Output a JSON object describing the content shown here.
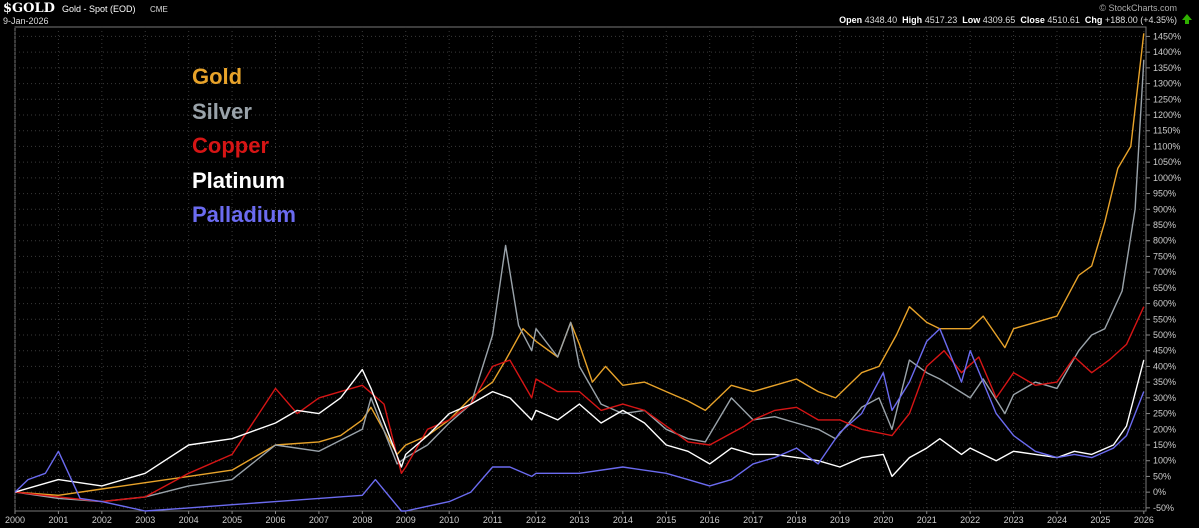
{
  "header": {
    "ticker": "$GOLD",
    "subtitle": "Gold - Spot (EOD)",
    "exchange": "CME",
    "date": "9-Jan-2026",
    "brand": "© StockCharts.com",
    "open_label": "Open",
    "open": "4348.40",
    "high_label": "High",
    "high": "4517.23",
    "low_label": "Low",
    "low": "4309.65",
    "close_label": "Close",
    "close": "4510.61",
    "chg_label": "Chg",
    "chg": "+188.00 (+4.35%)",
    "arrow_icon": "up-arrow-icon",
    "arrow_color": "#2fb000"
  },
  "chart_data": {
    "type": "line",
    "title": "",
    "xlabel": "",
    "ylabel": "",
    "xlim": [
      2000,
      2026.05
    ],
    "ylim": [
      -60,
      1480
    ],
    "grid": true,
    "legend_position": "top-left",
    "x_ticks": [
      "2000",
      "2001",
      "2002",
      "2003",
      "2004",
      "2005",
      "2006",
      "2007",
      "2008",
      "2009",
      "2010",
      "2011",
      "2012",
      "2013",
      "2014",
      "2015",
      "2016",
      "2017",
      "2018",
      "2019",
      "2020",
      "2021",
      "2022",
      "2023",
      "2024",
      "2025",
      "2026"
    ],
    "y_ticks": [
      "-50%",
      "0%",
      "50%",
      "100%",
      "150%",
      "200%",
      "250%",
      "300%",
      "350%",
      "400%",
      "450%",
      "500%",
      "550%",
      "600%",
      "650%",
      "700%",
      "750%",
      "800%",
      "850%",
      "900%",
      "950%",
      "1000%",
      "1050%",
      "1100%",
      "1150%",
      "1200%",
      "1250%",
      "1300%",
      "1350%",
      "1400%",
      "1450%"
    ],
    "series": [
      {
        "name": "Gold",
        "color": "#e8a32a",
        "points": [
          [
            2000,
            0
          ],
          [
            2001,
            -10
          ],
          [
            2002,
            10
          ],
          [
            2003,
            30
          ],
          [
            2004,
            50
          ],
          [
            2005,
            70
          ],
          [
            2006,
            150
          ],
          [
            2007,
            160
          ],
          [
            2007.5,
            180
          ],
          [
            2008,
            230
          ],
          [
            2008.2,
            270
          ],
          [
            2008.8,
            120
          ],
          [
            2009,
            150
          ],
          [
            2009.5,
            180
          ],
          [
            2010,
            230
          ],
          [
            2010.5,
            300
          ],
          [
            2011,
            350
          ],
          [
            2011.3,
            420
          ],
          [
            2011.7,
            520
          ],
          [
            2012,
            480
          ],
          [
            2012.5,
            430
          ],
          [
            2012.8,
            540
          ],
          [
            2013,
            470
          ],
          [
            2013.3,
            350
          ],
          [
            2013.6,
            400
          ],
          [
            2014,
            340
          ],
          [
            2014.5,
            350
          ],
          [
            2015,
            320
          ],
          [
            2015.5,
            290
          ],
          [
            2015.9,
            260
          ],
          [
            2016.5,
            340
          ],
          [
            2017,
            320
          ],
          [
            2017.5,
            340
          ],
          [
            2018,
            360
          ],
          [
            2018.5,
            320
          ],
          [
            2018.9,
            300
          ],
          [
            2019.5,
            380
          ],
          [
            2019.9,
            400
          ],
          [
            2020.3,
            500
          ],
          [
            2020.6,
            590
          ],
          [
            2021,
            540
          ],
          [
            2021.3,
            520
          ],
          [
            2022,
            520
          ],
          [
            2022.3,
            560
          ],
          [
            2022.8,
            460
          ],
          [
            2023,
            520
          ],
          [
            2023.5,
            540
          ],
          [
            2024,
            560
          ],
          [
            2024.5,
            690
          ],
          [
            2024.8,
            720
          ],
          [
            2025.1,
            860
          ],
          [
            2025.4,
            1030
          ],
          [
            2025.7,
            1100
          ],
          [
            2026,
            1460
          ]
        ]
      },
      {
        "name": "Silver",
        "color": "#9aa3aa",
        "points": [
          [
            2000,
            0
          ],
          [
            2001,
            -20
          ],
          [
            2002,
            -30
          ],
          [
            2003,
            -15
          ],
          [
            2004,
            20
          ],
          [
            2005,
            40
          ],
          [
            2006,
            150
          ],
          [
            2007,
            130
          ],
          [
            2008,
            200
          ],
          [
            2008.2,
            300
          ],
          [
            2008.8,
            90
          ],
          [
            2009,
            110
          ],
          [
            2009.5,
            150
          ],
          [
            2010,
            220
          ],
          [
            2010.5,
            280
          ],
          [
            2011,
            500
          ],
          [
            2011.3,
            785
          ],
          [
            2011.6,
            530
          ],
          [
            2011.9,
            450
          ],
          [
            2012,
            520
          ],
          [
            2012.5,
            430
          ],
          [
            2012.8,
            540
          ],
          [
            2013,
            400
          ],
          [
            2013.5,
            280
          ],
          [
            2014,
            250
          ],
          [
            2014.5,
            260
          ],
          [
            2015,
            200
          ],
          [
            2015.5,
            170
          ],
          [
            2015.9,
            160
          ],
          [
            2016.5,
            300
          ],
          [
            2017,
            230
          ],
          [
            2017.5,
            240
          ],
          [
            2018,
            220
          ],
          [
            2018.5,
            200
          ],
          [
            2018.9,
            170
          ],
          [
            2019.5,
            270
          ],
          [
            2019.9,
            300
          ],
          [
            2020.2,
            200
          ],
          [
            2020.6,
            420
          ],
          [
            2021,
            380
          ],
          [
            2021.3,
            360
          ],
          [
            2022,
            300
          ],
          [
            2022.3,
            360
          ],
          [
            2022.8,
            250
          ],
          [
            2023,
            310
          ],
          [
            2023.5,
            350
          ],
          [
            2024,
            330
          ],
          [
            2024.5,
            450
          ],
          [
            2024.8,
            500
          ],
          [
            2025.1,
            520
          ],
          [
            2025.5,
            640
          ],
          [
            2025.8,
            900
          ],
          [
            2026,
            1375
          ]
        ]
      },
      {
        "name": "Copper",
        "color": "#d61515",
        "points": [
          [
            2000,
            0
          ],
          [
            2001,
            -15
          ],
          [
            2002,
            -30
          ],
          [
            2003,
            -15
          ],
          [
            2004,
            60
          ],
          [
            2005,
            120
          ],
          [
            2006,
            330
          ],
          [
            2006.5,
            250
          ],
          [
            2007,
            300
          ],
          [
            2007.5,
            320
          ],
          [
            2008,
            340
          ],
          [
            2008.5,
            280
          ],
          [
            2008.9,
            60
          ],
          [
            2009,
            80
          ],
          [
            2009.5,
            200
          ],
          [
            2010,
            230
          ],
          [
            2010.5,
            280
          ],
          [
            2011,
            400
          ],
          [
            2011.4,
            420
          ],
          [
            2011.9,
            300
          ],
          [
            2012,
            360
          ],
          [
            2012.5,
            320
          ],
          [
            2013,
            320
          ],
          [
            2013.5,
            260
          ],
          [
            2014,
            280
          ],
          [
            2014.5,
            260
          ],
          [
            2015,
            210
          ],
          [
            2015.5,
            160
          ],
          [
            2016,
            150
          ],
          [
            2016.8,
            210
          ],
          [
            2017,
            230
          ],
          [
            2017.5,
            260
          ],
          [
            2018,
            270
          ],
          [
            2018.5,
            230
          ],
          [
            2019,
            230
          ],
          [
            2019.5,
            200
          ],
          [
            2020.2,
            180
          ],
          [
            2020.6,
            250
          ],
          [
            2021,
            400
          ],
          [
            2021.4,
            450
          ],
          [
            2021.8,
            380
          ],
          [
            2022.2,
            430
          ],
          [
            2022.6,
            300
          ],
          [
            2023,
            380
          ],
          [
            2023.5,
            340
          ],
          [
            2024,
            350
          ],
          [
            2024.4,
            430
          ],
          [
            2024.8,
            380
          ],
          [
            2025.2,
            420
          ],
          [
            2025.6,
            470
          ],
          [
            2026,
            590
          ]
        ]
      },
      {
        "name": "Platinum",
        "color": "#ffffff",
        "points": [
          [
            2000,
            0
          ],
          [
            2001,
            40
          ],
          [
            2002,
            20
          ],
          [
            2003,
            60
          ],
          [
            2004,
            150
          ],
          [
            2005,
            170
          ],
          [
            2006,
            220
          ],
          [
            2006.5,
            260
          ],
          [
            2007,
            250
          ],
          [
            2007.5,
            300
          ],
          [
            2008,
            390
          ],
          [
            2008.2,
            330
          ],
          [
            2008.9,
            80
          ],
          [
            2009,
            120
          ],
          [
            2009.5,
            180
          ],
          [
            2010,
            250
          ],
          [
            2010.5,
            280
          ],
          [
            2011,
            320
          ],
          [
            2011.4,
            300
          ],
          [
            2011.9,
            230
          ],
          [
            2012,
            260
          ],
          [
            2012.5,
            230
          ],
          [
            2013,
            280
          ],
          [
            2013.5,
            220
          ],
          [
            2014,
            260
          ],
          [
            2014.5,
            220
          ],
          [
            2015,
            150
          ],
          [
            2015.5,
            130
          ],
          [
            2016,
            90
          ],
          [
            2016.5,
            140
          ],
          [
            2017,
            120
          ],
          [
            2017.5,
            120
          ],
          [
            2018,
            110
          ],
          [
            2018.5,
            100
          ],
          [
            2019,
            80
          ],
          [
            2019.5,
            110
          ],
          [
            2020,
            120
          ],
          [
            2020.2,
            50
          ],
          [
            2020.6,
            110
          ],
          [
            2021,
            140
          ],
          [
            2021.3,
            170
          ],
          [
            2021.8,
            120
          ],
          [
            2022,
            140
          ],
          [
            2022.6,
            100
          ],
          [
            2023,
            130
          ],
          [
            2023.5,
            120
          ],
          [
            2024,
            110
          ],
          [
            2024.4,
            130
          ],
          [
            2024.8,
            120
          ],
          [
            2025.3,
            150
          ],
          [
            2025.6,
            210
          ],
          [
            2026,
            420
          ]
        ]
      },
      {
        "name": "Palladium",
        "color": "#6b6bf0",
        "points": [
          [
            2000,
            0
          ],
          [
            2000.3,
            40
          ],
          [
            2000.7,
            60
          ],
          [
            2001,
            130
          ],
          [
            2001.5,
            -20
          ],
          [
            2002,
            -30
          ],
          [
            2003,
            -60
          ],
          [
            2004,
            -50
          ],
          [
            2005,
            -40
          ],
          [
            2006,
            -30
          ],
          [
            2007,
            -20
          ],
          [
            2008,
            -10
          ],
          [
            2008.3,
            40
          ],
          [
            2008.9,
            -60
          ],
          [
            2009,
            -60
          ],
          [
            2010,
            -30
          ],
          [
            2010.5,
            0
          ],
          [
            2011,
            80
          ],
          [
            2011.4,
            80
          ],
          [
            2011.9,
            50
          ],
          [
            2012,
            60
          ],
          [
            2013,
            60
          ],
          [
            2014,
            80
          ],
          [
            2015,
            60
          ],
          [
            2015.5,
            40
          ],
          [
            2016,
            20
          ],
          [
            2016.5,
            40
          ],
          [
            2017,
            90
          ],
          [
            2017.5,
            110
          ],
          [
            2018,
            140
          ],
          [
            2018.5,
            90
          ],
          [
            2019,
            190
          ],
          [
            2019.5,
            250
          ],
          [
            2020,
            380
          ],
          [
            2020.2,
            260
          ],
          [
            2020.6,
            350
          ],
          [
            2021,
            480
          ],
          [
            2021.3,
            520
          ],
          [
            2021.8,
            350
          ],
          [
            2022,
            450
          ],
          [
            2022.6,
            250
          ],
          [
            2023,
            180
          ],
          [
            2023.5,
            130
          ],
          [
            2024,
            110
          ],
          [
            2024.4,
            120
          ],
          [
            2024.8,
            110
          ],
          [
            2025.3,
            140
          ],
          [
            2025.6,
            180
          ],
          [
            2026,
            320
          ]
        ]
      }
    ]
  }
}
